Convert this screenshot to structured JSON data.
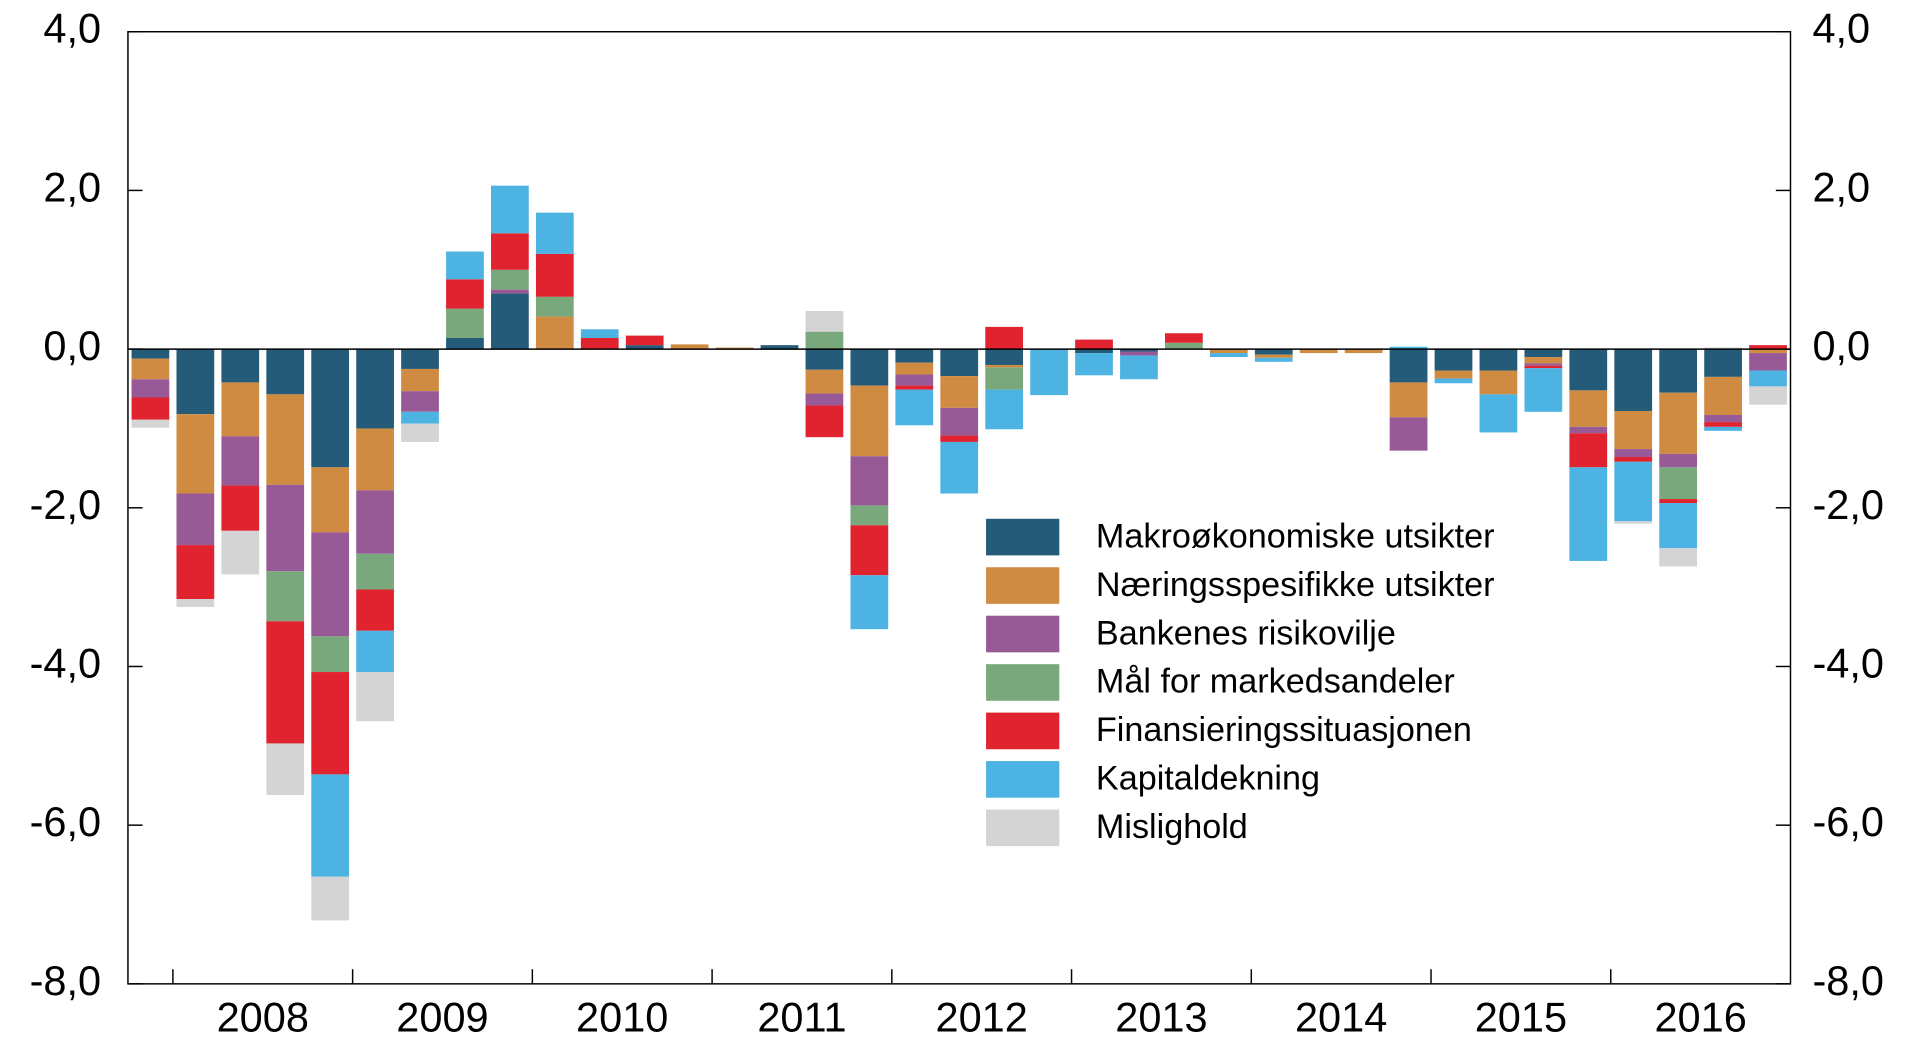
{
  "chart_data": {
    "type": "bar",
    "stacked": true,
    "categories": [
      null,
      null,
      "2008",
      null,
      null,
      null,
      "2009",
      null,
      null,
      null,
      "2010",
      null,
      null,
      null,
      "2011",
      null,
      null,
      null,
      "2012",
      null,
      null,
      null,
      "2013",
      null,
      null,
      null,
      "2014",
      null,
      null,
      null,
      "2015",
      null,
      null,
      null,
      "2016",
      null,
      null
    ],
    "series": [
      {
        "name": "Makroøkonomiske utsikter",
        "color": "#235b79",
        "values": [
          -0.12,
          -0.82,
          -0.42,
          -0.57,
          -1.49,
          -1.0,
          -0.25,
          0.14,
          0.7,
          0,
          0,
          0.05,
          0,
          0,
          0.05,
          -0.26,
          -0.46,
          -0.17,
          -0.34,
          -0.2,
          0,
          -0.05,
          -0.03,
          0,
          0,
          -0.07,
          0,
          0,
          -0.42,
          -0.27,
          -0.27,
          -0.1,
          -0.52,
          -0.78,
          -0.55,
          -0.35,
          0
        ]
      },
      {
        "name": "Næringsspesifikke utsikter",
        "color": "#d08b42",
        "values": [
          -0.26,
          -1.0,
          -0.68,
          -1.14,
          -0.82,
          -0.78,
          -0.28,
          0,
          0,
          0.41,
          0,
          0,
          0.06,
          0.02,
          0,
          -0.3,
          -0.89,
          -0.15,
          -0.4,
          -0.03,
          0,
          0,
          0,
          0,
          -0.05,
          -0.04,
          -0.05,
          -0.05,
          -0.44,
          -0.1,
          -0.3,
          -0.08,
          -0.46,
          -0.48,
          -0.77,
          -0.48,
          -0.05
        ]
      },
      {
        "name": "Bankenes risikovilje",
        "color": "#975a96",
        "values": [
          -0.23,
          -0.65,
          -0.62,
          -1.09,
          -1.31,
          -0.8,
          -0.26,
          0,
          0.05,
          0,
          0,
          0,
          0,
          0,
          0,
          -0.15,
          -0.62,
          -0.14,
          -0.35,
          0,
          0,
          0,
          -0.05,
          0,
          0,
          0,
          0,
          0,
          -0.42,
          0,
          0,
          -0.03,
          -0.08,
          -0.1,
          -0.17,
          -0.09,
          -0.22
        ]
      },
      {
        "name": "Mål for markedsandeler",
        "color": "#7aa87d",
        "values": [
          0,
          0,
          0,
          -0.63,
          -0.45,
          -0.45,
          0,
          0.37,
          0.25,
          0.25,
          0,
          0,
          0,
          0,
          0,
          0.22,
          -0.25,
          0,
          0,
          -0.28,
          0,
          0,
          0,
          0.08,
          0,
          0,
          0,
          0,
          0,
          0,
          0,
          0,
          0,
          0,
          -0.4,
          0,
          0
        ]
      },
      {
        "name": "Finansieringssituasjonen",
        "color": "#e0232f",
        "values": [
          -0.28,
          -0.68,
          -0.57,
          -1.54,
          -1.29,
          -0.52,
          0,
          0.37,
          0.46,
          0.54,
          0.14,
          0.12,
          0,
          0,
          0,
          -0.4,
          -0.63,
          -0.05,
          -0.08,
          0.28,
          0,
          0.12,
          0,
          0.12,
          0,
          0,
          0,
          0,
          0,
          0,
          0,
          -0.03,
          -0.43,
          -0.06,
          -0.05,
          -0.06,
          0.05
        ]
      },
      {
        "name": "Kapitaldekning",
        "color": "#4db3e2",
        "values": [
          0,
          0,
          0,
          0,
          -1.29,
          -0.52,
          -0.15,
          0.35,
          0.6,
          0.52,
          0.11,
          0,
          0,
          0,
          0,
          0,
          -0.68,
          -0.45,
          -0.65,
          -0.5,
          -0.58,
          -0.28,
          -0.3,
          0,
          -0.05,
          -0.05,
          0,
          0,
          0.03,
          -0.06,
          -0.48,
          -0.55,
          -1.18,
          -0.75,
          -0.57,
          -0.05,
          -0.2
        ]
      },
      {
        "name": "Mislighold",
        "color": "#d4d4d4",
        "values": [
          -0.1,
          -0.1,
          -0.55,
          -0.65,
          -0.55,
          -0.62,
          -0.23,
          0,
          0,
          0,
          0,
          0,
          0,
          0,
          0,
          0.26,
          0,
          0,
          0,
          0,
          0,
          0,
          0,
          0,
          0,
          0,
          0,
          0,
          0,
          0,
          0,
          0,
          0,
          -0.03,
          -0.23,
          0.02,
          -0.23
        ]
      }
    ],
    "ylim": [
      -8,
      4
    ],
    "yticks": [
      {
        "value": -8,
        "label": "-8,0"
      },
      {
        "value": -6,
        "label": "-6,0"
      },
      {
        "value": -4,
        "label": "-4,0"
      },
      {
        "value": -2,
        "label": "-2,0"
      },
      {
        "value": 0,
        "label": "0,0"
      },
      {
        "value": 2,
        "label": "2,0"
      },
      {
        "value": 4,
        "label": "4,0"
      }
    ],
    "y2lim": [
      -8,
      4
    ],
    "y2ticks": [
      {
        "value": -8,
        "label": "-8,0"
      },
      {
        "value": -6,
        "label": "-6,0"
      },
      {
        "value": -4,
        "label": "-4,0"
      },
      {
        "value": -2,
        "label": "-2,0"
      },
      {
        "value": 0,
        "label": "0,0"
      },
      {
        "value": 2,
        "label": "2,0"
      },
      {
        "value": 4,
        "label": "4,0"
      }
    ]
  }
}
